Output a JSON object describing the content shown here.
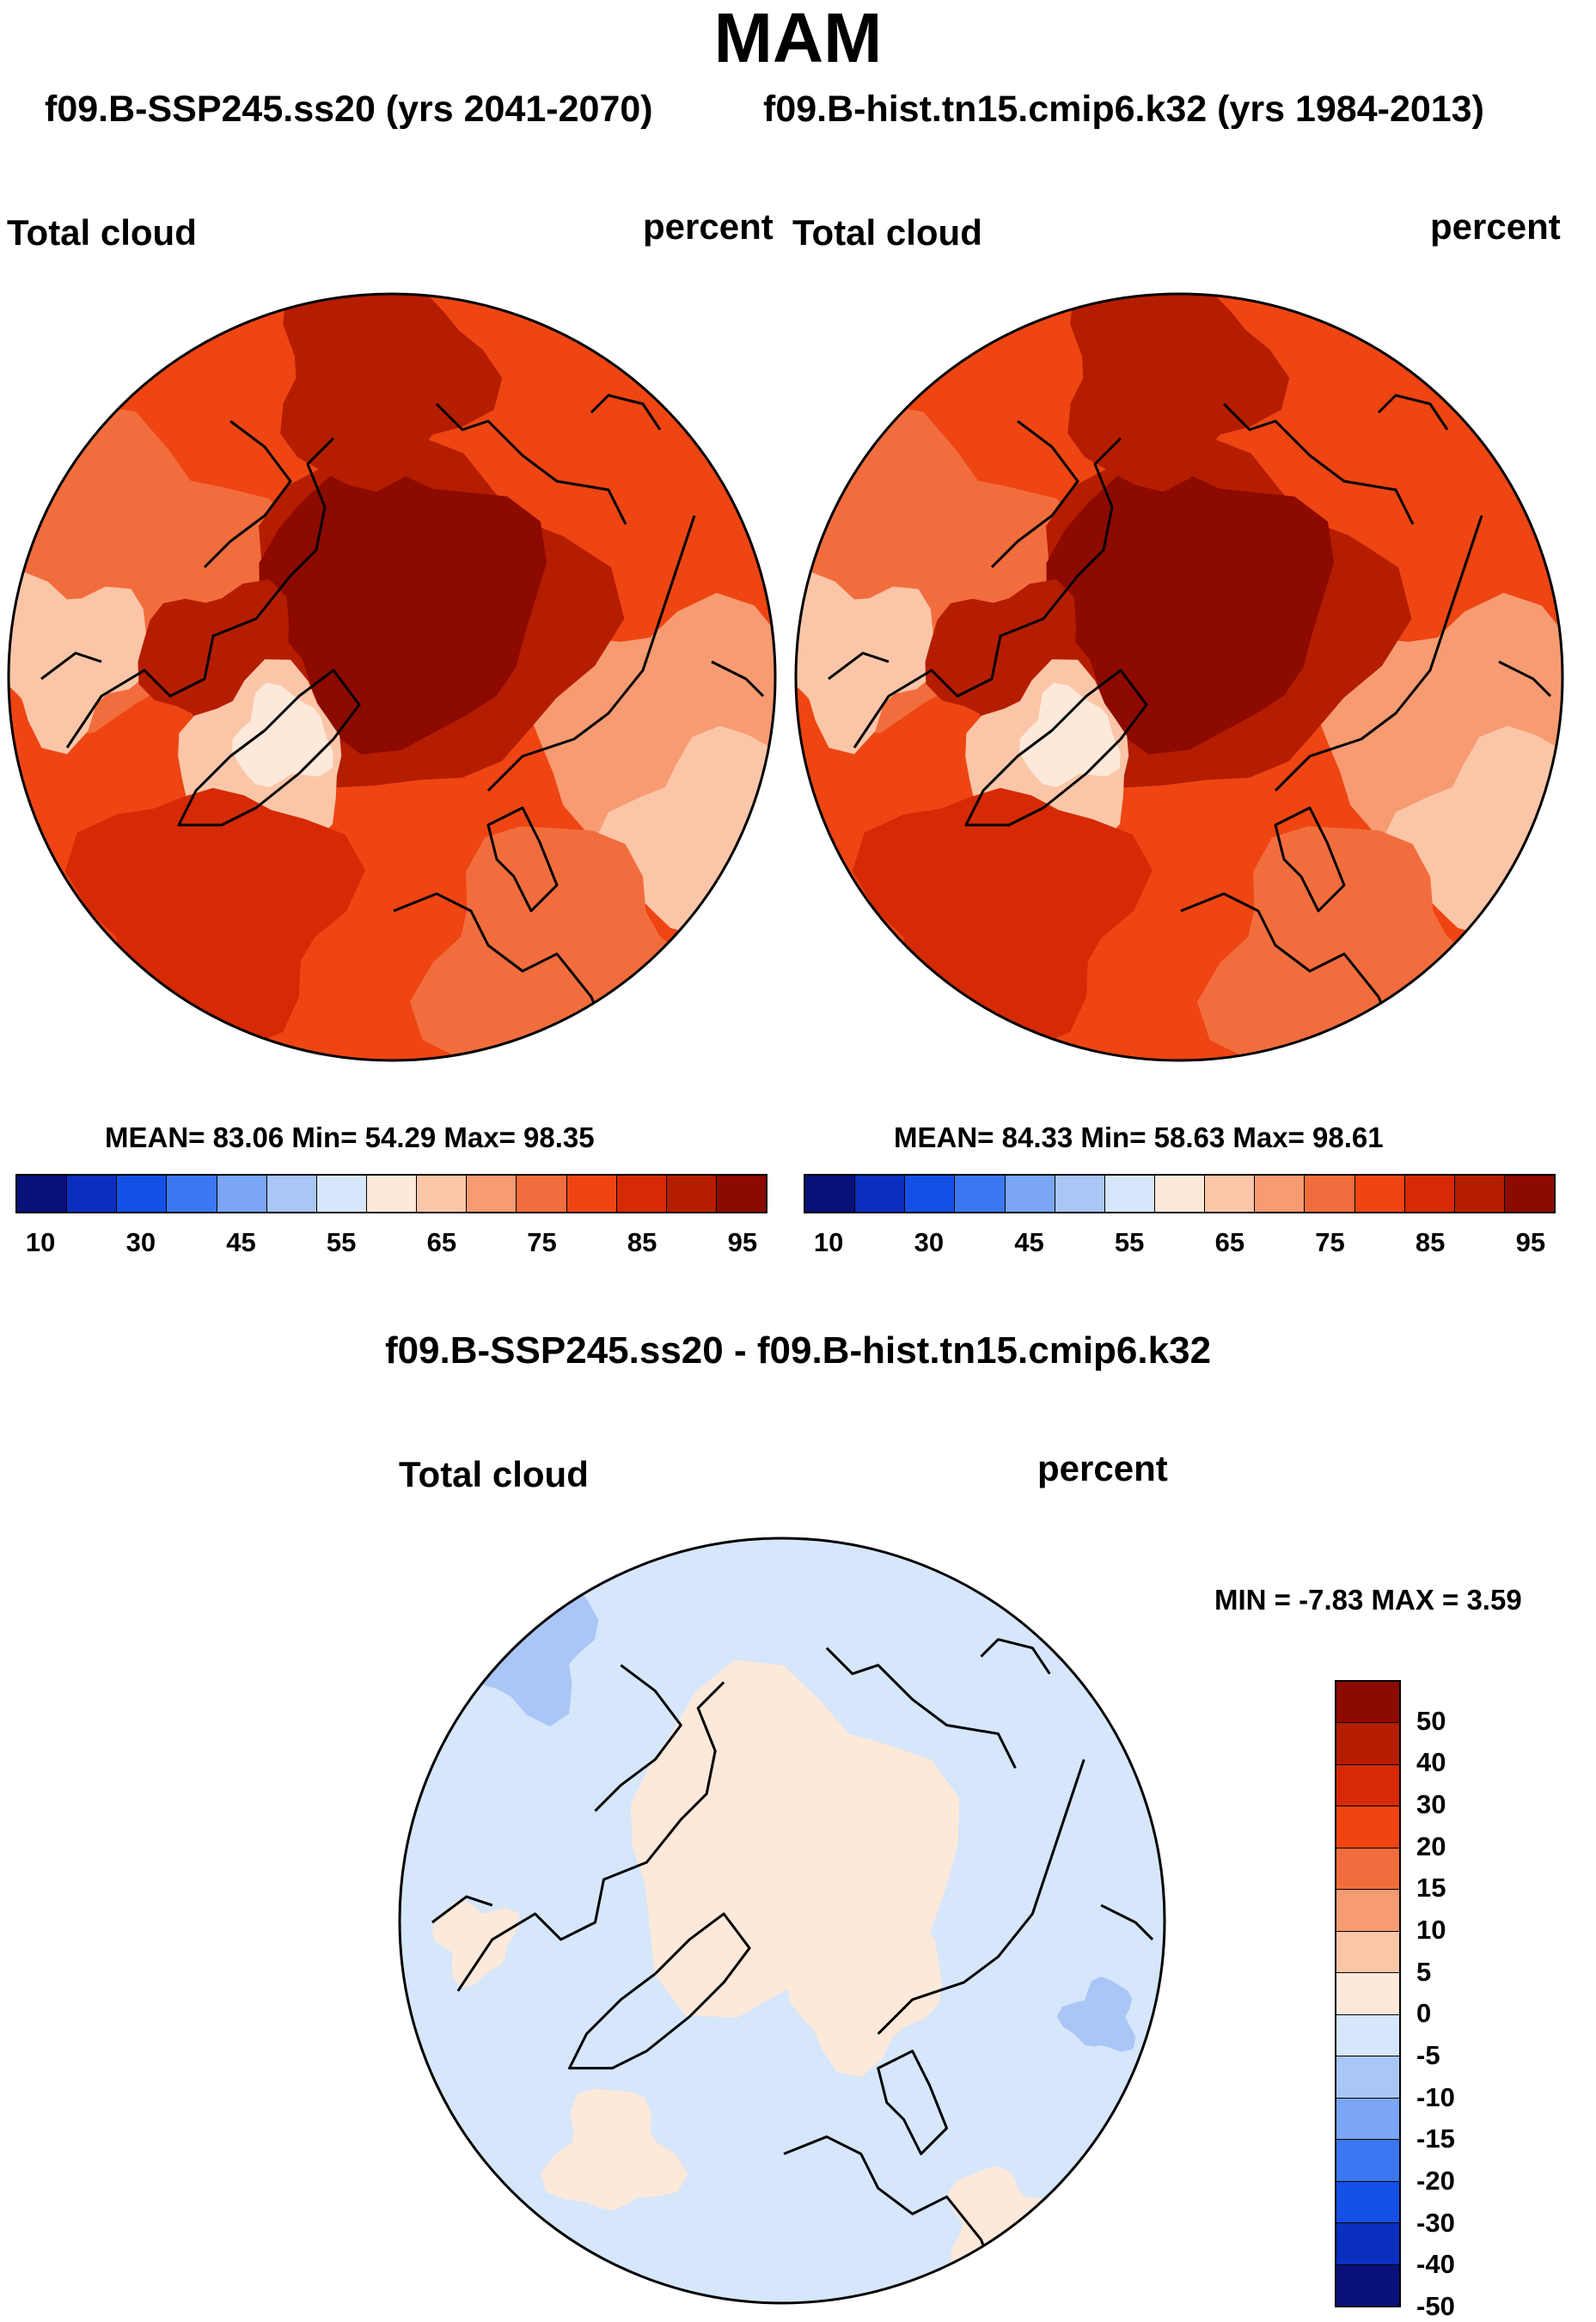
{
  "main_title": "MAM",
  "subtitle_left": "f09.B-SSP245.ss20 (yrs 2041-2070)",
  "subtitle_right": "f09.B-hist.tn15.cmip6.k32 (yrs 1984-2013)",
  "diff_title": "f09.B-SSP245.ss20 - f09.B-hist.tn15.cmip6.k32",
  "colors": {
    "abs_scale": [
      "#08107a",
      "#0a2fbf",
      "#1550e6",
      "#3a78f2",
      "#7aa6f5",
      "#a9c6f7",
      "#d6e6fb",
      "#fde9da",
      "#fbc6a8",
      "#f79b72",
      "#f26d3d",
      "#ee4513",
      "#d52a05",
      "#b51d00",
      "#8c0a00"
    ],
    "diff_scale": [
      "#08107a",
      "#0a2fbf",
      "#1550e6",
      "#3a78f2",
      "#7aa6f5",
      "#a9c6f7",
      "#d6e6fb",
      "#fde9da",
      "#fbc6a8",
      "#f79b72",
      "#f26d3d",
      "#ee4513",
      "#d52a05",
      "#b51d00",
      "#8c0a00"
    ]
  },
  "chart_data": [
    {
      "type": "heatmap",
      "panel": "left",
      "title": "Total cloud",
      "units": "percent",
      "projection": "north polar stereographic",
      "stats": {
        "mean_label": "MEAN=",
        "mean": "83.06",
        "min_label": "Min=",
        "min": "54.29",
        "max_label": "Max=",
        "max": "98.35"
      },
      "colorbar_ticks": [
        "10",
        "30",
        "45",
        "55",
        "65",
        "75",
        "85",
        "95"
      ]
    },
    {
      "type": "heatmap",
      "panel": "right",
      "title": "Total cloud",
      "units": "percent",
      "projection": "north polar stereographic",
      "stats": {
        "mean_label": "MEAN=",
        "mean": "84.33",
        "min_label": "Min=",
        "min": "58.63",
        "max_label": "Max=",
        "max": "98.61"
      },
      "colorbar_ticks": [
        "10",
        "30",
        "45",
        "55",
        "65",
        "75",
        "85",
        "95"
      ]
    },
    {
      "type": "heatmap",
      "panel": "difference",
      "title": "Total cloud",
      "units": "percent",
      "projection": "north polar stereographic",
      "stats": {
        "min_label": "MIN =",
        "min": "-7.83",
        "max_label": "MAX =",
        "max": "3.59"
      },
      "colorbar_ticks": [
        "50",
        "40",
        "30",
        "20",
        "15",
        "10",
        "5",
        "0",
        "-5",
        "-10",
        "-15",
        "-20",
        "-30",
        "-40",
        "-50"
      ]
    }
  ]
}
